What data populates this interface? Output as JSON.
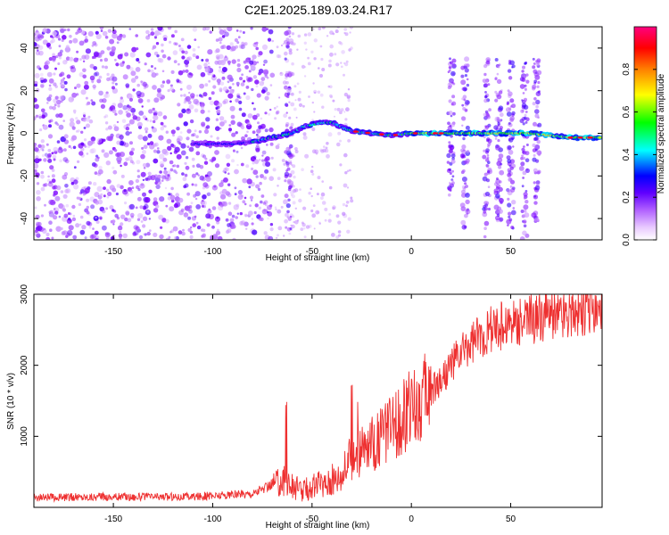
{
  "title": "C2E1.2025.189.03.24.R17",
  "chart_data": [
    {
      "type": "heatmap",
      "xlabel": "Height of straight line (km)",
      "ylabel": "Frequency (Hz)",
      "xlim": [
        -190,
        96
      ],
      "ylim": [
        -50,
        50
      ],
      "x_ticks": [
        -150,
        -100,
        -50,
        0,
        50
      ],
      "x_tick_labels": [
        "-150",
        "-100",
        "-50",
        "0",
        "50"
      ],
      "y_ticks": [
        -40,
        -20,
        0,
        20,
        40
      ],
      "y_tick_labels": [
        "-40",
        "-20",
        "0",
        "20",
        "40"
      ],
      "grid": false,
      "colorbar": {
        "label": "Normalized spectral amplitude",
        "range": [
          0,
          1
        ],
        "ticks": [
          0.0,
          0.2,
          0.4,
          0.6,
          0.8
        ],
        "tick_labels": [
          "0.0",
          "0.2",
          "0.4",
          "0.6",
          "0.8"
        ],
        "colormap": [
          "#ffffff",
          "#c080ff",
          "#7a00ff",
          "#0000ff",
          "#00ffff",
          "#00ff00",
          "#ffff00",
          "#ff8000",
          "#ff0000",
          "#ff0080"
        ]
      },
      "ridge": {
        "x": [
          -110,
          -100,
          -90,
          -80,
          -70,
          -60,
          -55,
          -50,
          -45,
          -40,
          -35,
          -30,
          -20,
          -10,
          0,
          10,
          20,
          30,
          40,
          50,
          60,
          70,
          80,
          95
        ],
        "y": [
          -5,
          -5,
          -5,
          -4,
          -2,
          0,
          3,
          4,
          5,
          5,
          3,
          1,
          0,
          -1,
          0,
          0,
          0,
          0,
          0,
          0,
          0,
          -1,
          -2,
          -2
        ]
      },
      "vertical_bands": [
        {
          "x": -62,
          "y_range": [
            -50,
            50
          ]
        },
        {
          "x": 20,
          "y_range": [
            -30,
            35
          ]
        },
        {
          "x": 27,
          "y_range": [
            -45,
            35
          ]
        },
        {
          "x": 38,
          "y_range": [
            -50,
            35
          ]
        },
        {
          "x": 44,
          "y_range": [
            -45,
            35
          ]
        },
        {
          "x": 50,
          "y_range": [
            -45,
            35
          ]
        },
        {
          "x": 57,
          "y_range": [
            -50,
            35
          ]
        },
        {
          "x": 63,
          "y_range": [
            -45,
            35
          ]
        }
      ]
    },
    {
      "type": "line",
      "xlabel": "Height of straight line (km)",
      "ylabel": "SNR (10 * v/v)",
      "xlim": [
        -190,
        96
      ],
      "ylim": [
        0,
        3000
      ],
      "x_ticks": [
        -150,
        -100,
        -50,
        0,
        50
      ],
      "x_tick_labels": [
        "-150",
        "-100",
        "-50",
        "0",
        "50"
      ],
      "y_ticks": [
        1000,
        2000,
        3000
      ],
      "y_tick_labels": [
        "1000",
        "2000",
        "3000"
      ],
      "grid": false,
      "series": [
        {
          "color": "#ee3030",
          "x": [
            -190,
            -180,
            -160,
            -140,
            -120,
            -100,
            -90,
            -80,
            -75,
            -70,
            -65,
            -60,
            -55,
            -50,
            -45,
            -40,
            -35,
            -30,
            -25,
            -20,
            -15,
            -10,
            -5,
            0,
            5,
            10,
            15,
            20,
            25,
            30,
            35,
            40,
            50,
            60,
            70,
            80,
            90,
            96
          ],
          "y": [
            140,
            140,
            150,
            150,
            150,
            160,
            180,
            200,
            250,
            330,
            380,
            300,
            220,
            300,
            330,
            400,
            500,
            700,
            800,
            900,
            1000,
            1100,
            1250,
            1400,
            1500,
            1650,
            1800,
            2000,
            2150,
            2300,
            2400,
            2500,
            2600,
            2650,
            2700,
            2750,
            2800,
            2800
          ]
        }
      ],
      "spikes": [
        {
          "x": -63,
          "y": 1500
        },
        {
          "x": -30,
          "y": 1750
        },
        {
          "x": -27,
          "y": 1600
        }
      ]
    }
  ]
}
